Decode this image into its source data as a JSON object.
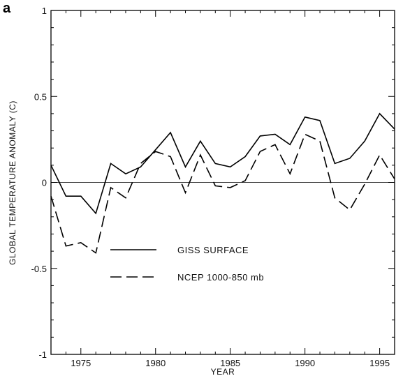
{
  "panel_label": "a",
  "chart_data": {
    "type": "line",
    "xlabel": "YEAR",
    "ylabel": "GLOBAL TEMPERATURE ANOMALY (C)",
    "xlim": [
      1973,
      1996
    ],
    "ylim": [
      -1,
      1
    ],
    "x_ticks": [
      1975,
      1980,
      1985,
      1990,
      1995
    ],
    "y_ticks": [
      -1,
      -0.5,
      0,
      0.5,
      1
    ],
    "y_tick_labels": [
      "-1",
      "-0.5",
      "0",
      "0.5",
      "1"
    ],
    "zero_line": true,
    "grid": false,
    "legend_placement": "lower-left",
    "x": [
      1973,
      1974,
      1975,
      1976,
      1977,
      1978,
      1979,
      1980,
      1981,
      1982,
      1983,
      1984,
      1985,
      1986,
      1987,
      1988,
      1989,
      1990,
      1991,
      1992,
      1993,
      1994,
      1995,
      1996
    ],
    "series": [
      {
        "name": "GISS SURFACE",
        "style": "solid",
        "color": "#000000",
        "values": [
          0.1,
          -0.08,
          -0.08,
          -0.18,
          0.11,
          0.05,
          0.09,
          0.19,
          0.29,
          0.09,
          0.24,
          0.11,
          0.09,
          0.15,
          0.27,
          0.28,
          0.22,
          0.38,
          0.36,
          0.11,
          0.14,
          0.24,
          0.4,
          0.31
        ]
      },
      {
        "name": "NCEP 1000-850 mb",
        "style": "dashed",
        "color": "#000000",
        "values": [
          -0.08,
          -0.37,
          -0.35,
          -0.41,
          -0.03,
          -0.09,
          0.11,
          0.18,
          0.15,
          -0.06,
          0.16,
          -0.02,
          -0.03,
          0.01,
          0.18,
          0.22,
          0.05,
          0.28,
          0.24,
          -0.09,
          -0.16,
          -0.01,
          0.16,
          0.02
        ]
      }
    ]
  }
}
